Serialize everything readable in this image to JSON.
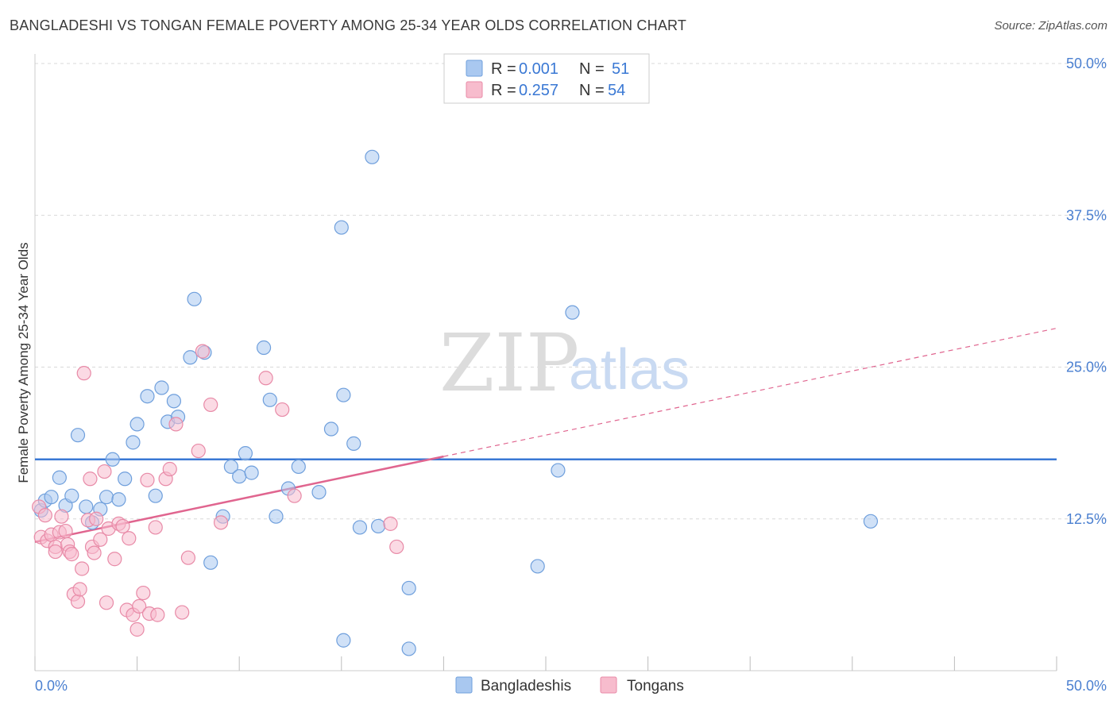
{
  "title": "BANGLADESHI VS TONGAN FEMALE POVERTY AMONG 25-34 YEAR OLDS CORRELATION CHART",
  "source": "Source: ZipAtlas.com",
  "watermark": {
    "part1": "ZIP",
    "part2": "atlas"
  },
  "legend": {
    "r_label": "R =",
    "n_label": "N =",
    "rows": [
      {
        "r": "0.001",
        "n": "51",
        "color": "#a9c8f0",
        "stroke": "#6f9fdc"
      },
      {
        "r": "0.257",
        "n": "54",
        "color": "#f7bccd",
        "stroke": "#e88aa7"
      }
    ]
  },
  "bottom_legend": [
    "Bangladeshis",
    "Tongans"
  ],
  "chart_data": {
    "type": "scatter",
    "ylabel": "Female Poverty Among 25-34 Year Olds",
    "xlabel": "",
    "xlim": [
      0,
      50
    ],
    "ylim": [
      0,
      50
    ],
    "x_tick_labels": [
      "0.0%",
      "50.0%"
    ],
    "y_ticks": [
      12.5,
      25.0,
      37.5,
      50.0
    ],
    "y_tick_labels": [
      "12.5%",
      "25.0%",
      "37.5%",
      "50.0%"
    ],
    "grid": true,
    "series": [
      {
        "name": "Bangladeshis",
        "color": "#a9c8f0",
        "stroke": "#6f9fdc",
        "trend": {
          "x0": 0,
          "y0": 17.4,
          "x1": 50,
          "y1": 17.4,
          "color": "#3a78d4",
          "dashed_from": null
        },
        "points": [
          [
            0.3,
            13.2
          ],
          [
            0.5,
            14.0
          ],
          [
            0.8,
            14.3
          ],
          [
            1.2,
            15.9
          ],
          [
            1.5,
            13.6
          ],
          [
            1.8,
            14.4
          ],
          [
            2.1,
            19.4
          ],
          [
            2.5,
            13.5
          ],
          [
            2.8,
            12.2
          ],
          [
            3.2,
            13.3
          ],
          [
            3.5,
            14.3
          ],
          [
            3.8,
            17.4
          ],
          [
            4.1,
            14.1
          ],
          [
            4.4,
            15.8
          ],
          [
            4.8,
            18.8
          ],
          [
            5.0,
            20.3
          ],
          [
            5.5,
            22.6
          ],
          [
            5.9,
            14.4
          ],
          [
            6.2,
            23.3
          ],
          [
            6.5,
            20.5
          ],
          [
            6.8,
            22.2
          ],
          [
            7.0,
            20.9
          ],
          [
            7.6,
            25.8
          ],
          [
            7.8,
            30.6
          ],
          [
            8.3,
            26.2
          ],
          [
            8.6,
            8.9
          ],
          [
            9.2,
            12.7
          ],
          [
            9.6,
            16.8
          ],
          [
            10.0,
            16.0
          ],
          [
            10.3,
            17.9
          ],
          [
            10.6,
            16.3
          ],
          [
            11.2,
            26.6
          ],
          [
            11.5,
            22.3
          ],
          [
            11.8,
            12.7
          ],
          [
            12.4,
            15.0
          ],
          [
            12.9,
            16.8
          ],
          [
            13.9,
            14.7
          ],
          [
            14.5,
            19.9
          ],
          [
            15.1,
            2.5
          ],
          [
            15.6,
            18.7
          ],
          [
            15.0,
            36.5
          ],
          [
            15.1,
            22.7
          ],
          [
            15.9,
            11.8
          ],
          [
            16.5,
            42.3
          ],
          [
            16.8,
            11.9
          ],
          [
            18.3,
            6.8
          ],
          [
            18.3,
            1.8
          ],
          [
            24.6,
            8.6
          ],
          [
            25.6,
            16.5
          ],
          [
            26.3,
            29.5
          ],
          [
            40.9,
            12.3
          ]
        ]
      },
      {
        "name": "Tongans",
        "color": "#f7bccd",
        "stroke": "#e88aa7",
        "trend": {
          "x0": 0,
          "y0": 10.6,
          "x1": 50,
          "y1": 28.2,
          "color": "#e0658f",
          "solid_until": 20
        },
        "points": [
          [
            0.2,
            13.5
          ],
          [
            0.3,
            11.0
          ],
          [
            0.5,
            12.8
          ],
          [
            0.6,
            10.7
          ],
          [
            0.8,
            11.2
          ],
          [
            1.0,
            10.2
          ],
          [
            1.0,
            9.8
          ],
          [
            1.2,
            11.4
          ],
          [
            1.3,
            12.7
          ],
          [
            1.5,
            11.5
          ],
          [
            1.6,
            10.4
          ],
          [
            1.7,
            9.8
          ],
          [
            1.8,
            9.6
          ],
          [
            1.9,
            6.3
          ],
          [
            2.1,
            5.7
          ],
          [
            2.2,
            6.7
          ],
          [
            2.3,
            8.4
          ],
          [
            2.4,
            24.5
          ],
          [
            2.6,
            12.4
          ],
          [
            2.7,
            15.8
          ],
          [
            2.8,
            10.2
          ],
          [
            2.9,
            9.7
          ],
          [
            3.0,
            12.5
          ],
          [
            3.2,
            10.8
          ],
          [
            3.4,
            16.4
          ],
          [
            3.5,
            5.6
          ],
          [
            3.6,
            11.7
          ],
          [
            3.9,
            9.2
          ],
          [
            4.1,
            12.1
          ],
          [
            4.3,
            11.9
          ],
          [
            4.5,
            5.0
          ],
          [
            4.6,
            10.9
          ],
          [
            4.8,
            4.6
          ],
          [
            5.0,
            3.4
          ],
          [
            5.1,
            5.3
          ],
          [
            5.3,
            6.4
          ],
          [
            5.5,
            15.7
          ],
          [
            5.6,
            4.7
          ],
          [
            5.9,
            11.8
          ],
          [
            6.0,
            4.6
          ],
          [
            6.4,
            15.8
          ],
          [
            6.6,
            16.6
          ],
          [
            6.9,
            20.3
          ],
          [
            7.2,
            4.8
          ],
          [
            7.5,
            9.3
          ],
          [
            8.0,
            18.1
          ],
          [
            8.2,
            26.3
          ],
          [
            8.6,
            21.9
          ],
          [
            9.1,
            12.2
          ],
          [
            11.3,
            24.1
          ],
          [
            12.1,
            21.5
          ],
          [
            12.7,
            14.4
          ],
          [
            17.4,
            12.1
          ],
          [
            17.7,
            10.2
          ]
        ]
      }
    ]
  }
}
